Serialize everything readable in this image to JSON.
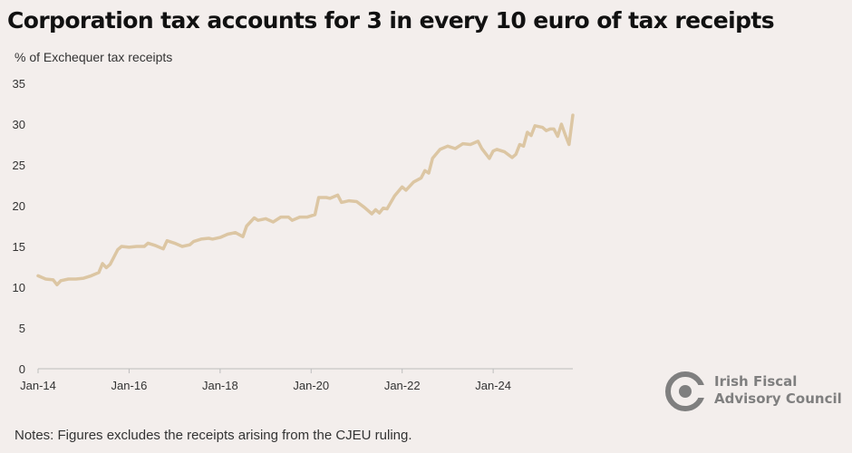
{
  "title": "Corporation tax accounts for 3 in every 10 euro of tax receipts",
  "subtitle": "% of Exchequer tax receipts",
  "note": "Notes: Figures excludes the receipts arising from the CJEU ruling.",
  "logo": {
    "icon": "ifac-logo-icon",
    "line1": "Irish Fiscal",
    "line2": "Advisory Council"
  },
  "colors": {
    "line": "#dcc6a3",
    "axis": "#bdbdbd",
    "text": "#333333",
    "logo": "#7f7f7f",
    "background": "#f3eeec"
  },
  "chart_data": {
    "type": "line",
    "title": "Corporation tax accounts for 3 in every 10 euro of tax receipts",
    "ylabel": "% of Exchequer tax receipts",
    "ylim": [
      0,
      35
    ],
    "yticks": [
      0,
      5,
      10,
      15,
      20,
      25,
      30,
      35
    ],
    "xlim": [
      "2014-01",
      "2025-10"
    ],
    "xticks": [
      "Jan-14",
      "Jan-16",
      "Jan-18",
      "Jan-20",
      "Jan-22",
      "Jan-24"
    ],
    "grid": false,
    "series": [
      {
        "points": [
          [
            "2014-01",
            11.4
          ],
          [
            "2014-03",
            11.0
          ],
          [
            "2014-05",
            10.9
          ],
          [
            "2014-06",
            10.3
          ],
          [
            "2014-07",
            10.8
          ],
          [
            "2014-09",
            11.0
          ],
          [
            "2014-11",
            11.0
          ],
          [
            "2015-01",
            11.1
          ],
          [
            "2015-03",
            11.4
          ],
          [
            "2015-05",
            11.8
          ],
          [
            "2015-06",
            12.9
          ],
          [
            "2015-07",
            12.4
          ],
          [
            "2015-08",
            12.8
          ],
          [
            "2015-09",
            13.7
          ],
          [
            "2015-10",
            14.6
          ],
          [
            "2015-11",
            15.0
          ],
          [
            "2016-01",
            14.9
          ],
          [
            "2016-03",
            15.0
          ],
          [
            "2016-05",
            15.0
          ],
          [
            "2016-06",
            15.4
          ],
          [
            "2016-08",
            15.1
          ],
          [
            "2016-10",
            14.7
          ],
          [
            "2016-11",
            15.7
          ],
          [
            "2017-01",
            15.4
          ],
          [
            "2017-03",
            15.0
          ],
          [
            "2017-05",
            15.2
          ],
          [
            "2017-06",
            15.6
          ],
          [
            "2017-08",
            15.9
          ],
          [
            "2017-10",
            16.0
          ],
          [
            "2017-11",
            15.9
          ],
          [
            "2018-01",
            16.1
          ],
          [
            "2018-03",
            16.5
          ],
          [
            "2018-05",
            16.7
          ],
          [
            "2018-07",
            16.2
          ],
          [
            "2018-08",
            17.5
          ],
          [
            "2018-10",
            18.5
          ],
          [
            "2018-11",
            18.2
          ],
          [
            "2019-01",
            18.4
          ],
          [
            "2019-03",
            18.0
          ],
          [
            "2019-05",
            18.6
          ],
          [
            "2019-07",
            18.6
          ],
          [
            "2019-08",
            18.2
          ],
          [
            "2019-10",
            18.6
          ],
          [
            "2019-12",
            18.6
          ],
          [
            "2020-02",
            18.9
          ],
          [
            "2020-03",
            21.0
          ],
          [
            "2020-05",
            21.0
          ],
          [
            "2020-06",
            20.9
          ],
          [
            "2020-08",
            21.3
          ],
          [
            "2020-09",
            20.4
          ],
          [
            "2020-11",
            20.6
          ],
          [
            "2021-01",
            20.5
          ],
          [
            "2021-03",
            19.8
          ],
          [
            "2021-05",
            19.0
          ],
          [
            "2021-06",
            19.5
          ],
          [
            "2021-07",
            19.1
          ],
          [
            "2021-08",
            19.7
          ],
          [
            "2021-09",
            19.6
          ],
          [
            "2021-11",
            21.2
          ],
          [
            "2022-01",
            22.3
          ],
          [
            "2022-02",
            21.9
          ],
          [
            "2022-04",
            22.9
          ],
          [
            "2022-06",
            23.4
          ],
          [
            "2022-07",
            24.3
          ],
          [
            "2022-08",
            24.0
          ],
          [
            "2022-09",
            25.8
          ],
          [
            "2022-11",
            26.9
          ],
          [
            "2023-01",
            27.3
          ],
          [
            "2023-03",
            27.0
          ],
          [
            "2023-05",
            27.6
          ],
          [
            "2023-07",
            27.5
          ],
          [
            "2023-09",
            27.9
          ],
          [
            "2023-10",
            27.0
          ],
          [
            "2023-12",
            25.8
          ],
          [
            "2024-01",
            26.7
          ],
          [
            "2024-02",
            26.9
          ],
          [
            "2024-04",
            26.6
          ],
          [
            "2024-06",
            25.9
          ],
          [
            "2024-07",
            26.3
          ],
          [
            "2024-08",
            27.5
          ],
          [
            "2024-09",
            27.3
          ],
          [
            "2024-10",
            29.0
          ],
          [
            "2024-11",
            28.6
          ],
          [
            "2024-12",
            29.8
          ],
          [
            "2025-02",
            29.6
          ],
          [
            "2025-03",
            29.2
          ],
          [
            "2025-04",
            29.4
          ],
          [
            "2025-05",
            29.4
          ],
          [
            "2025-06",
            28.5
          ],
          [
            "2025-07",
            30.0
          ],
          [
            "2025-08",
            28.7
          ],
          [
            "2025-09",
            27.5
          ],
          [
            "2025-10",
            31.1
          ]
        ]
      }
    ]
  }
}
